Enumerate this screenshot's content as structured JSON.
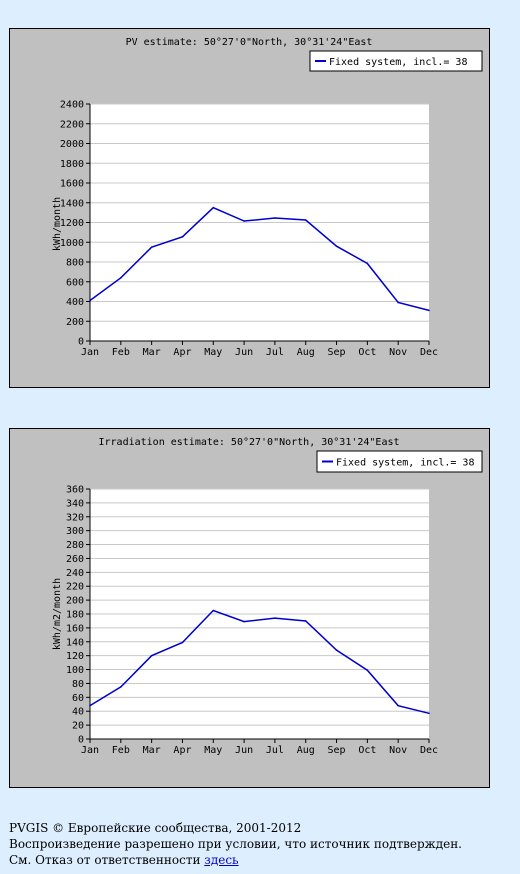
{
  "chart_data": [
    {
      "type": "line",
      "title": "PV estimate:  50°27'0\"North, 30°31'24\"East",
      "ylabel": "kWh/month",
      "xlabel": "",
      "categories": [
        "Jan",
        "Feb",
        "Mar",
        "Apr",
        "May",
        "Jun",
        "Jul",
        "Aug",
        "Sep",
        "Oct",
        "Nov",
        "Dec"
      ],
      "series": [
        {
          "name": "Fixed system, incl.=  38",
          "color": "#0000cc",
          "values": [
            410,
            640,
            950,
            1055,
            1350,
            1215,
            1245,
            1225,
            960,
            785,
            390,
            310
          ]
        }
      ],
      "ylim": [
        0,
        2400
      ],
      "yticks": [
        0,
        200,
        400,
        600,
        800,
        1000,
        1200,
        1400,
        1600,
        1800,
        2000,
        2200,
        2400
      ],
      "grid": true,
      "legend": "top-right"
    },
    {
      "type": "line",
      "title": "Irradiation estimate:  50°27'0\"North, 30°31'24\"East",
      "ylabel": "kWh/m2/month",
      "xlabel": "",
      "categories": [
        "Jan",
        "Feb",
        "Mar",
        "Apr",
        "May",
        "Jun",
        "Jul",
        "Aug",
        "Sep",
        "Oct",
        "Nov",
        "Dec"
      ],
      "series": [
        {
          "name": "Fixed system, incl.=  38",
          "color": "#0000cc",
          "values": [
            48,
            75,
            120,
            139,
            185,
            169,
            174,
            170,
            128,
            99,
            48,
            37
          ]
        }
      ],
      "ylim": [
        0,
        360
      ],
      "yticks": [
        0,
        20,
        40,
        60,
        80,
        100,
        120,
        140,
        160,
        180,
        200,
        220,
        240,
        260,
        280,
        300,
        320,
        340,
        360
      ],
      "grid": true,
      "legend": "top-right"
    }
  ],
  "footer": {
    "line1": "PVGIS © Европейские сообщества, 2001-2012",
    "line2": "Воспроизведение разрешено при условии, что источник подтвержден.",
    "line3_prefix": "См. Отказ от ответственности",
    "line3_link": "здесь"
  }
}
